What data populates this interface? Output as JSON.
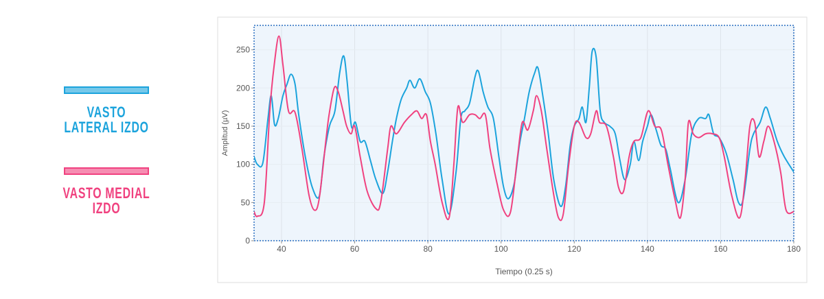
{
  "chart_data": {
    "type": "line",
    "xlabel": "Tiempo (0.25 s)",
    "ylabel": "Amplitud (µV)",
    "xlim": [
      32.5,
      180
    ],
    "xticks": [
      40,
      60,
      80,
      100,
      120,
      140,
      160,
      180
    ],
    "ylim": [
      0,
      282
    ],
    "yticks": [
      0,
      50,
      100,
      150,
      200,
      250
    ],
    "grid": true,
    "legend": "left",
    "series": [
      {
        "name": "VASTO LATERAL IZDO",
        "color": "#1ba3dc",
        "x": [
          32.5,
          33.4,
          34.9,
          36.3,
          37.2,
          38.1,
          39.1,
          40.4,
          41.5,
          42.6,
          43.7,
          44.7,
          46.5,
          48.4,
          50.3,
          51.6,
          53.1,
          54.6,
          55.9,
          57,
          57.9,
          59.1,
          60.2,
          61.5,
          62.8,
          64.3,
          65.8,
          67.7,
          69,
          70.3,
          71.4,
          72.7,
          74.2,
          75.1,
          76.4,
          77.8,
          79.3,
          80.7,
          82.2,
          83.9,
          85.8,
          87.7,
          89,
          90.1,
          91.4,
          92.9,
          93.8,
          95.1,
          96.4,
          97.9,
          99.4,
          100.7,
          102,
          103.6,
          105,
          106.4,
          107.7,
          109.2,
          110.1,
          111.4,
          112.9,
          114.4,
          116.3,
          117.6,
          118.9,
          120,
          121.3,
          122.2,
          123.2,
          124.1,
          124.9,
          126,
          127.1,
          128.2,
          129.7,
          131.2,
          132.5,
          133.8,
          135.3,
          136.3,
          137.6,
          138.7,
          140,
          141,
          142.4,
          143.7,
          145,
          146.2,
          148.4,
          150.3,
          152.1,
          154,
          155.9,
          156.8,
          158.1,
          159.6,
          161.5,
          163.4,
          164.9,
          166.2,
          168,
          169,
          170.8,
          172.3,
          173.6,
          175.5,
          177.4,
          180
        ],
        "values": [
          110,
          100,
          102,
          160,
          190,
          152,
          160,
          190,
          205,
          218,
          205,
          165,
          110,
          70,
          58,
          110,
          150,
          170,
          220,
          242,
          210,
          150,
          155,
          130,
          130,
          105,
          80,
          62,
          90,
          130,
          160,
          185,
          200,
          210,
          200,
          212,
          195,
          180,
          140,
          80,
          35,
          90,
          160,
          170,
          180,
          215,
          222,
          195,
          175,
          160,
          110,
          70,
          55,
          75,
          125,
          160,
          195,
          220,
          226,
          190,
          140,
          80,
          45,
          70,
          125,
          150,
          160,
          175,
          155,
          200,
          248,
          240,
          170,
          155,
          150,
          140,
          105,
          80,
          100,
          130,
          105,
          130,
          150,
          165,
          145,
          125,
          120,
          95,
          50,
          80,
          140,
          160,
          160,
          165,
          140,
          135,
          115,
          80,
          50,
          55,
          120,
          140,
          155,
          175,
          160,
          130,
          110,
          90
        ]
      },
      {
        "name": "VASTO MEDIAL IZDO",
        "color": "#f0417f",
        "x": [
          32.5,
          33.4,
          35.3,
          36.8,
          38,
          39.3,
          40.4,
          41.9,
          43.7,
          45.6,
          47.5,
          49,
          50.3,
          52.1,
          53,
          54.4,
          55.5,
          56.8,
          57.8,
          59,
          60,
          61.5,
          63.4,
          65.8,
          67.1,
          69,
          69.9,
          71.4,
          73.6,
          75.5,
          77,
          78.3,
          79.6,
          80.7,
          82,
          83.9,
          85.8,
          87.1,
          88.2,
          89.5,
          91.4,
          92.9,
          94.2,
          95.7,
          97,
          98.9,
          100.7,
          102.6,
          104.5,
          105.8,
          107.3,
          108.8,
          109.7,
          111,
          112.5,
          114.4,
          115.7,
          117,
          118.5,
          120,
          121.3,
          123.2,
          124.5,
          126,
          126.9,
          128.8,
          130.7,
          132.1,
          133.5,
          135,
          136.3,
          138.2,
          140.2,
          142,
          143.8,
          145.6,
          147.5,
          149,
          150.3,
          151.2,
          152.5,
          154,
          155.9,
          157.8,
          159.6,
          161,
          163,
          165.2,
          166.7,
          168,
          169.3,
          170.5,
          171.8,
          173,
          174.6,
          176.4,
          177.9,
          180
        ],
        "values": [
          38,
          32,
          50,
          170,
          230,
          268,
          230,
          170,
          168,
          120,
          60,
          40,
          55,
          130,
          165,
          200,
          195,
          170,
          150,
          140,
          150,
          110,
          65,
          42,
          50,
          120,
          150,
          140,
          155,
          165,
          170,
          160,
          165,
          130,
          100,
          50,
          30,
          100,
          175,
          155,
          165,
          165,
          160,
          165,
          120,
          75,
          40,
          38,
          110,
          155,
          145,
          170,
          190,
          170,
          120,
          60,
          30,
          35,
          100,
          150,
          155,
          135,
          140,
          170,
          155,
          150,
          110,
          70,
          65,
          110,
          130,
          135,
          170,
          150,
          145,
          100,
          55,
          30,
          80,
          155,
          140,
          135,
          140,
          140,
          135,
          110,
          60,
          30,
          80,
          150,
          155,
          110,
          130,
          150,
          130,
          90,
          40,
          38
        ]
      }
    ]
  }
}
